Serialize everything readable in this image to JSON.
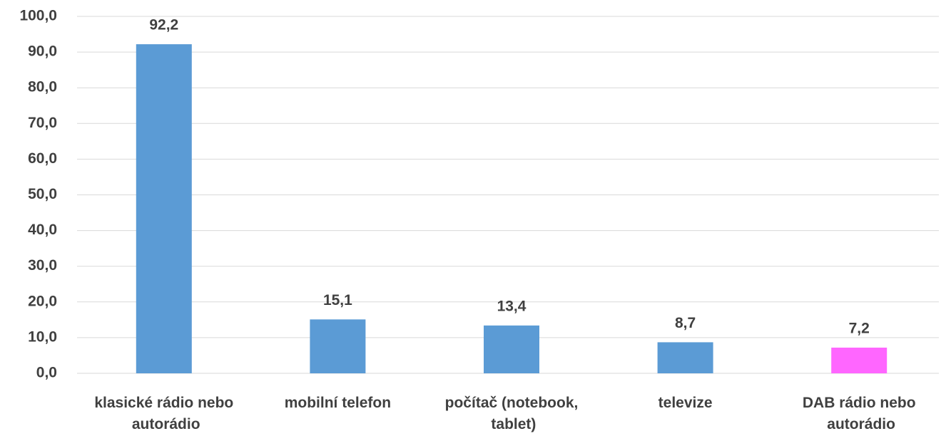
{
  "chart_data": {
    "type": "bar",
    "categories": [
      "klasické rádio nebo autorádio",
      "mobilní telefon",
      "počítač (notebook, tablet)",
      "televize",
      "DAB rádio nebo autorádio"
    ],
    "values": [
      92.2,
      15.1,
      13.4,
      8.7,
      7.2
    ],
    "value_labels": [
      "92,2",
      "15,1",
      "13,4",
      "8,7",
      "7,2"
    ],
    "colors": [
      "#5b9bd5",
      "#5b9bd5",
      "#5b9bd5",
      "#5b9bd5",
      "#ff66ff"
    ],
    "ylim": [
      0,
      100
    ],
    "yticks": [
      {
        "value": 0,
        "label": "0,0"
      },
      {
        "value": 10,
        "label": "10,0"
      },
      {
        "value": 20,
        "label": "20,0"
      },
      {
        "value": 30,
        "label": "30,0"
      },
      {
        "value": 40,
        "label": "40,0"
      },
      {
        "value": 50,
        "label": "50,0"
      },
      {
        "value": 60,
        "label": "60,0"
      },
      {
        "value": 70,
        "label": "70,0"
      },
      {
        "value": 80,
        "label": "80,0"
      },
      {
        "value": 90,
        "label": "90,0"
      },
      {
        "value": 100,
        "label": "100,0"
      }
    ],
    "grid": true
  }
}
